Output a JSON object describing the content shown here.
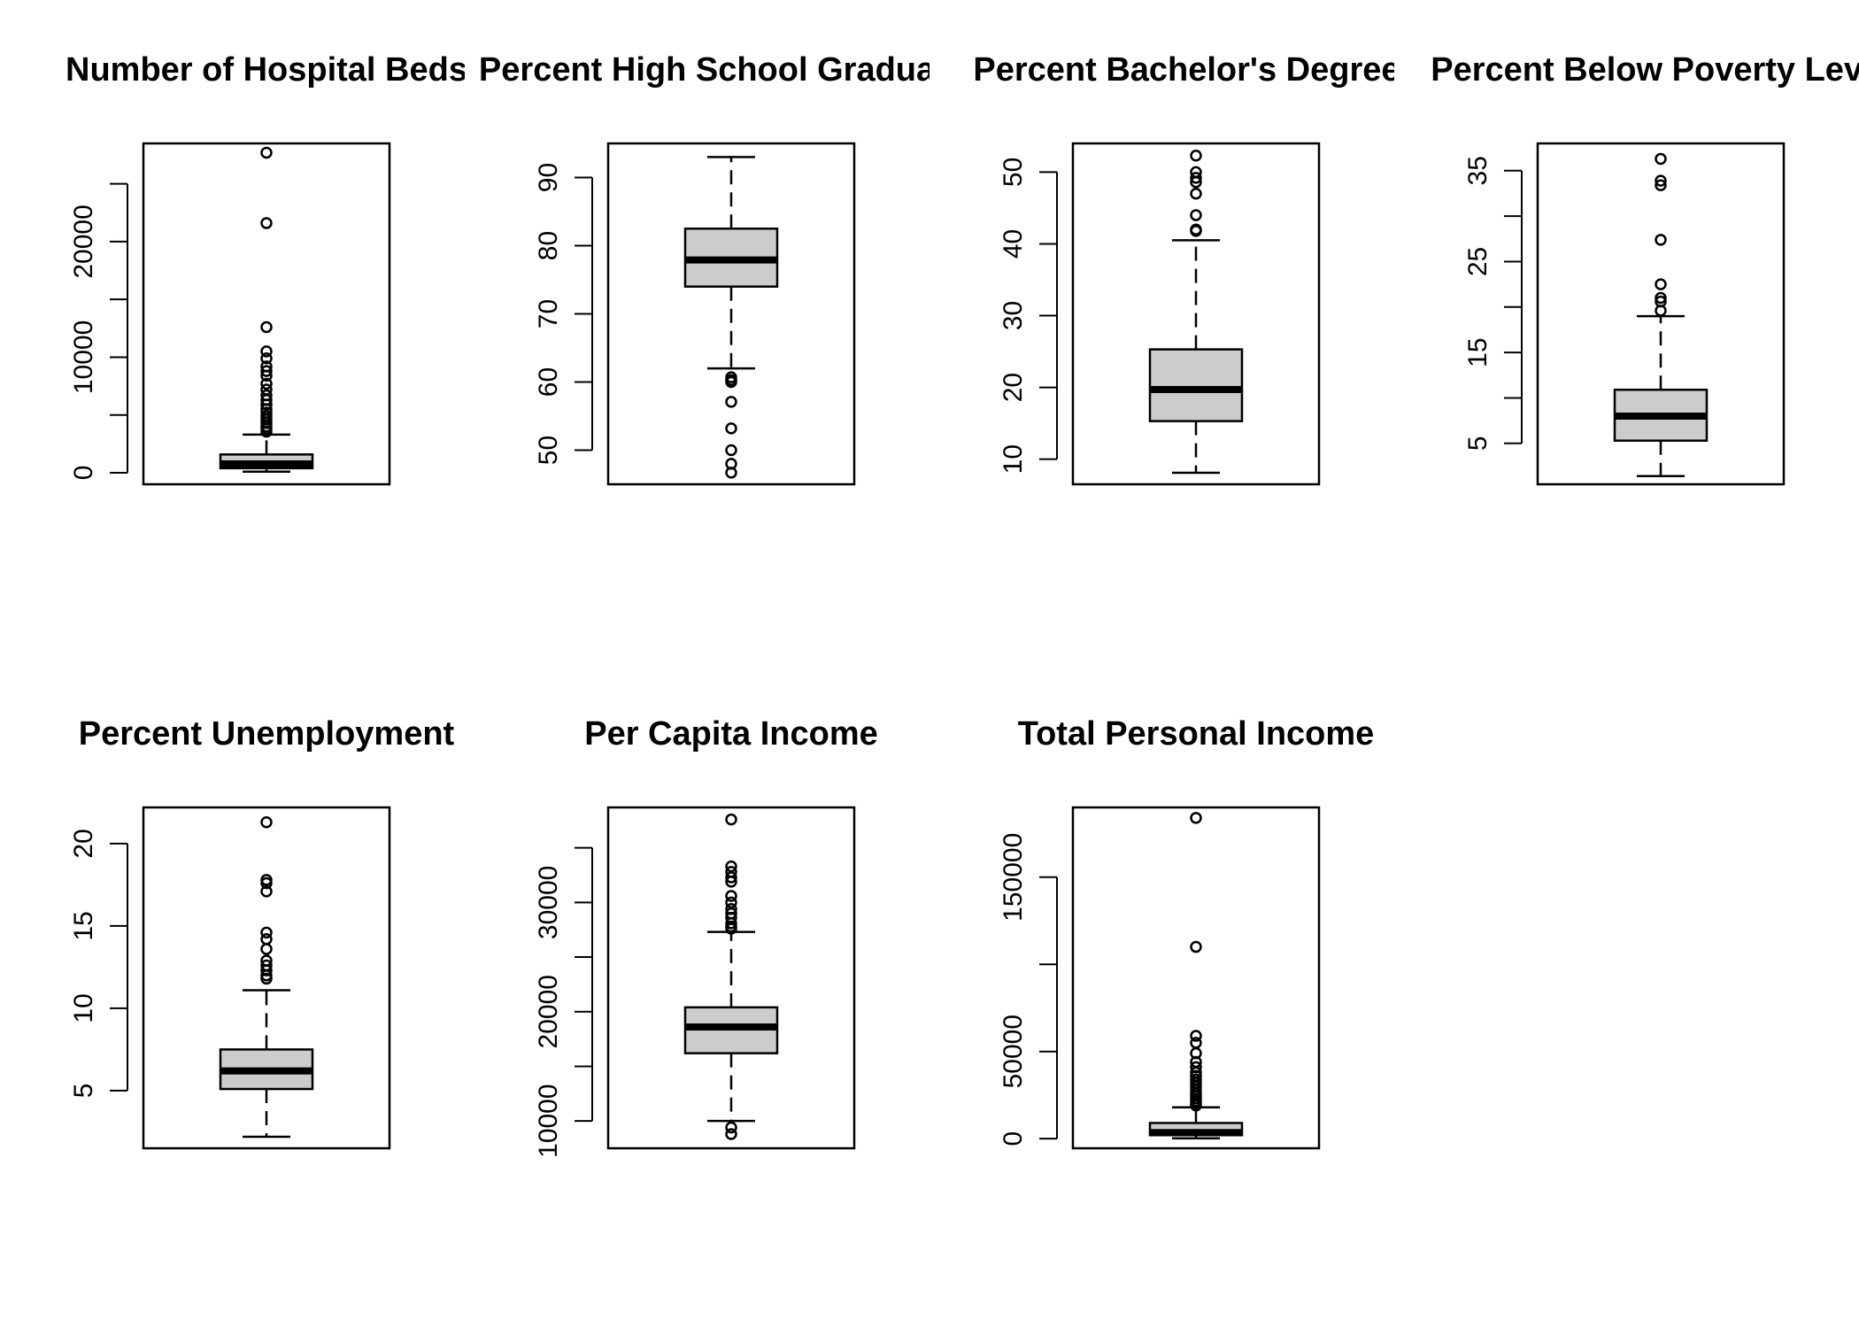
{
  "colors": {
    "box_fill": "#cccccc",
    "stroke": "#000000",
    "background": "#ffffff"
  },
  "chart_data": [
    {
      "type": "boxplot",
      "title": "Number of Hospital Beds",
      "ylim": [
        -1000,
        28500
      ],
      "yticks": [
        0,
        5000,
        10000,
        15000,
        20000,
        25000
      ],
      "ytick_labels": [
        "0",
        "",
        "10000",
        "",
        "20000",
        ""
      ],
      "stats": {
        "min": 90,
        "q1": 390,
        "median": 760,
        "q3": 1580,
        "max": 3300
      },
      "outliers": [
        27700,
        21600,
        12600,
        10500,
        9900,
        9200,
        8800,
        8400,
        7700,
        7200,
        6700,
        6300,
        5900,
        5500,
        5200,
        4900,
        4600,
        4300,
        4000,
        3800,
        3550
      ]
    },
    {
      "type": "boxplot",
      "title": "Percent High School Graduates",
      "ylim": [
        45,
        95
      ],
      "yticks": [
        50,
        60,
        70,
        80,
        90
      ],
      "ytick_labels": [
        "50",
        "60",
        "70",
        "80",
        "90"
      ],
      "stats": {
        "min": 62,
        "q1": 74,
        "median": 77.9,
        "q3": 82.5,
        "max": 93
      },
      "outliers": [
        60.7,
        60.3,
        60,
        57.1,
        53.2,
        50,
        48,
        46.7
      ]
    },
    {
      "type": "boxplot",
      "title": "Percent Bachelor's Degrees",
      "ylim": [
        6.5,
        54
      ],
      "yticks": [
        10,
        20,
        30,
        40,
        50
      ],
      "ytick_labels": [
        "10",
        "20",
        "30",
        "40",
        "50"
      ],
      "stats": {
        "min": 8.1,
        "q1": 15.3,
        "median": 19.7,
        "q3": 25.3,
        "max": 40.5
      },
      "outliers": [
        52.3,
        50,
        49.2,
        48.6,
        47,
        44,
        42,
        41.8
      ]
    },
    {
      "type": "boxplot",
      "title": "Percent Below Poverty Level",
      "ylim": [
        0.5,
        38
      ],
      "yticks": [
        5,
        10,
        15,
        20,
        25,
        30,
        35
      ],
      "ytick_labels": [
        "5",
        "",
        "15",
        "",
        "25",
        "",
        "35"
      ],
      "stats": {
        "min": 1.4,
        "q1": 5.3,
        "median": 8,
        "q3": 10.9,
        "max": 19
      },
      "outliers": [
        36.3,
        33.9,
        33.4,
        27.4,
        22.5,
        21,
        20.6,
        19.6
      ]
    },
    {
      "type": "boxplot",
      "title": "Percent Unemployment",
      "ylim": [
        1.5,
        22.2
      ],
      "yticks": [
        5,
        10,
        15,
        20
      ],
      "ytick_labels": [
        "5",
        "10",
        "15",
        "20"
      ],
      "stats": {
        "min": 2.2,
        "q1": 5.1,
        "median": 6.2,
        "q3": 7.5,
        "max": 11.1
      },
      "outliers": [
        21.3,
        17.8,
        17.6,
        17.1,
        14.6,
        14.2,
        13.6,
        12.9,
        12.6,
        12.3,
        12,
        11.8
      ]
    },
    {
      "type": "boxplot",
      "title": "Per Capita Income",
      "ylim": [
        7500,
        38700
      ],
      "yticks": [
        10000,
        15000,
        20000,
        25000,
        30000,
        35000
      ],
      "ytick_labels": [
        "10000",
        "",
        "20000",
        "",
        "30000",
        ""
      ],
      "stats": {
        "min": 10000,
        "q1": 16200,
        "median": 18600,
        "q3": 20400,
        "max": 27300
      },
      "outliers": [
        37600,
        33300,
        32800,
        32300,
        31900,
        30600,
        30000,
        29400,
        29000,
        28600,
        28100,
        27800,
        27600,
        9400,
        8800
      ]
    },
    {
      "type": "boxplot",
      "title": "Total Personal Income",
      "ylim": [
        -5500,
        190000
      ],
      "yticks": [
        0,
        50000,
        100000,
        150000
      ],
      "ytick_labels": [
        "0",
        "50000",
        "",
        "150000"
      ],
      "stats": {
        "min": 200,
        "q1": 2000,
        "median": 3500,
        "q3": 9000,
        "max": 18000
      },
      "outliers": [
        184000,
        110000,
        59000,
        55000,
        49000,
        44000,
        41000,
        38000,
        36000,
        34000,
        32000,
        30000,
        28000,
        26000,
        24500,
        23000,
        21500,
        20000,
        19000
      ]
    }
  ]
}
